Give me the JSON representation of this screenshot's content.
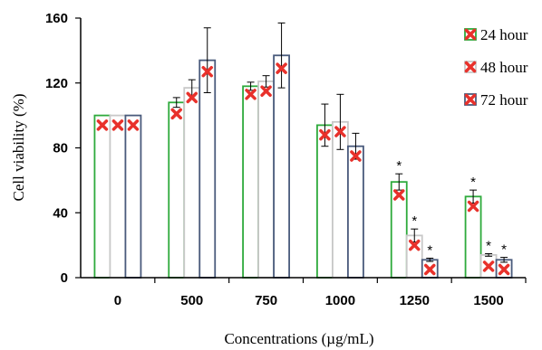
{
  "chart_data": {
    "type": "bar",
    "title": "",
    "xlabel": "Concentrations (µg/mL)",
    "ylabel": "Cell viability (%)",
    "ylim": [
      0,
      160
    ],
    "yticks": [
      "0",
      "40",
      "80",
      "120",
      "160"
    ],
    "categories": [
      "0",
      "500",
      "750",
      "1000",
      "1250",
      "1500"
    ],
    "series": [
      {
        "name": "24 hour",
        "color": "#2eaa3c",
        "values": [
          100,
          108,
          118,
          94,
          59,
          50
        ],
        "errors": [
          0,
          3,
          2.5,
          13,
          5,
          4
        ],
        "stars": [
          false,
          false,
          false,
          false,
          true,
          true
        ]
      },
      {
        "name": "48 hour",
        "color": "#c8c8c8",
        "values": [
          100,
          117,
          121,
          96,
          26,
          14
        ],
        "errors": [
          0,
          5,
          3.5,
          17,
          4,
          0.8
        ],
        "stars": [
          false,
          false,
          false,
          false,
          true,
          true
        ]
      },
      {
        "name": "72 hour",
        "color": "#4a5b7c",
        "values": [
          100,
          134,
          137,
          81,
          11,
          11
        ],
        "errors": [
          0,
          20,
          20,
          8,
          1,
          1.5
        ],
        "stars": [
          false,
          false,
          false,
          false,
          true,
          true
        ]
      }
    ],
    "markers": [
      [
        94,
        101,
        113,
        88,
        51,
        44
      ],
      [
        94,
        111,
        115,
        90,
        20,
        7
      ],
      [
        94,
        127,
        129,
        75,
        5,
        5
      ]
    ],
    "star_symbol": "*",
    "legend_position": "top-right",
    "grid": false
  }
}
